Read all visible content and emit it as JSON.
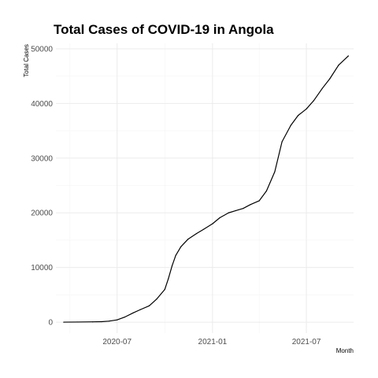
{
  "chart_data": {
    "type": "line",
    "title": "Total Cases of COVID-19 in Angola",
    "xlabel": "Month",
    "ylabel": "Total Cases",
    "x_axis": {
      "type": "date",
      "range": [
        "2020-03-05",
        "2021-09-30"
      ],
      "ticks": [
        {
          "date": "2020-07-01",
          "label": "2020-07"
        },
        {
          "date": "2021-01-01",
          "label": "2021-01"
        },
        {
          "date": "2021-07-01",
          "label": "2021-07"
        }
      ]
    },
    "y_axis": {
      "range": [
        -2000,
        51000
      ],
      "ticks": [
        0,
        10000,
        20000,
        30000,
        40000,
        50000
      ]
    },
    "grid": true,
    "series": [
      {
        "color": "#000000",
        "x": [
          "2020-03-20",
          "2020-04-15",
          "2020-05-15",
          "2020-06-01",
          "2020-06-15",
          "2020-07-01",
          "2020-07-15",
          "2020-08-01",
          "2020-08-15",
          "2020-09-01",
          "2020-09-15",
          "2020-10-01",
          "2020-10-08",
          "2020-10-15",
          "2020-10-22",
          "2020-11-01",
          "2020-11-15",
          "2020-12-01",
          "2020-12-15",
          "2021-01-01",
          "2021-01-15",
          "2021-02-01",
          "2021-02-15",
          "2021-03-01",
          "2021-03-15",
          "2021-04-01",
          "2021-04-15",
          "2021-05-01",
          "2021-05-15",
          "2021-06-01",
          "2021-06-15",
          "2021-07-01",
          "2021-07-15",
          "2021-08-01",
          "2021-08-15",
          "2021-09-01",
          "2021-09-20"
        ],
        "values": [
          5,
          25,
          60,
          90,
          190,
          420,
          900,
          1700,
          2300,
          3000,
          4200,
          6000,
          8000,
          10300,
          12200,
          13800,
          15200,
          16200,
          17000,
          18000,
          19100,
          20000,
          20400,
          20800,
          21500,
          22200,
          24000,
          27500,
          33000,
          36000,
          37800,
          39000,
          40500,
          42800,
          44500,
          47000,
          48700
        ]
      }
    ]
  }
}
